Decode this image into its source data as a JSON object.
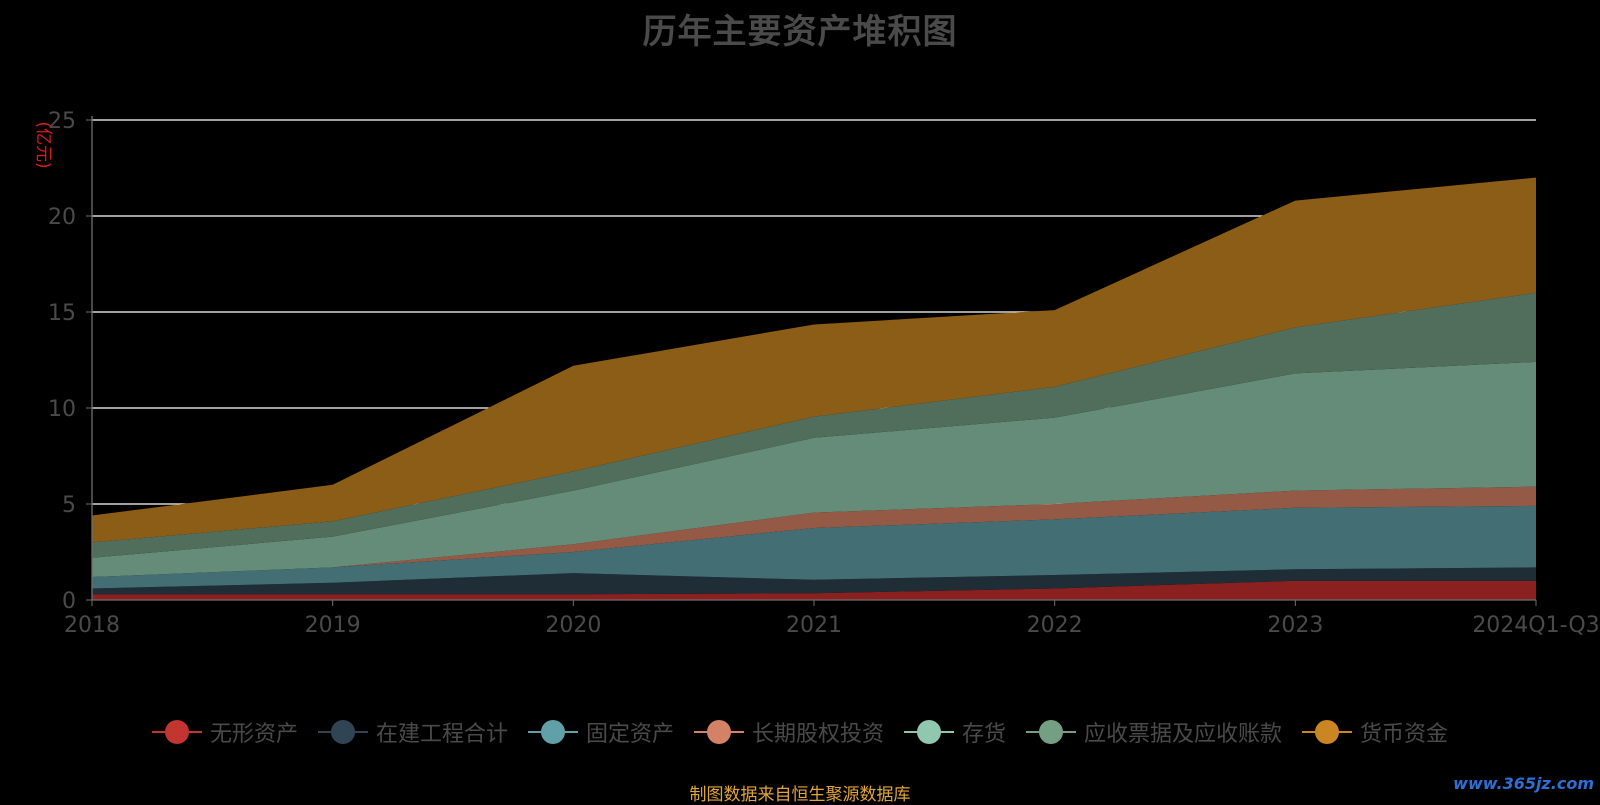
{
  "chart_data": {
    "type": "area",
    "stacked": true,
    "title": "历年主要资产堆积图",
    "ylabel": "(亿元)",
    "xlabel": "",
    "categories": [
      "2018",
      "2019",
      "2020",
      "2021",
      "2022",
      "2023",
      "2024Q1-Q3"
    ],
    "ylim": [
      0,
      25
    ],
    "yticks": [
      0,
      5,
      10,
      15,
      20,
      25
    ],
    "grid": true,
    "legend_position": "bottom",
    "series": [
      {
        "name": "无形资产",
        "color": "#c23531",
        "fill": "#8b2020",
        "values": [
          0.3,
          0.3,
          0.3,
          0.35,
          0.6,
          1.0,
          1.0
        ]
      },
      {
        "name": "在建工程合计",
        "color": "#2f4554",
        "fill": "#1f2d36",
        "values": [
          0.3,
          0.6,
          1.1,
          0.7,
          0.7,
          0.6,
          0.7
        ]
      },
      {
        "name": "固定资产",
        "color": "#61a0a8",
        "fill": "#436e74",
        "values": [
          0.6,
          0.8,
          1.1,
          2.7,
          2.9,
          3.2,
          3.2
        ]
      },
      {
        "name": "长期股权投资",
        "color": "#d48265",
        "fill": "#945a46",
        "values": [
          0.0,
          0.0,
          0.4,
          0.8,
          0.8,
          0.9,
          1.0
        ]
      },
      {
        "name": "存货",
        "color": "#91c7ae",
        "fill": "#658b79",
        "values": [
          1.0,
          1.6,
          2.8,
          3.9,
          4.5,
          6.1,
          6.5
        ]
      },
      {
        "name": "应收票据及应收账款",
        "color": "#749f83",
        "fill": "#506e5b",
        "values": [
          0.8,
          0.8,
          1.0,
          1.1,
          1.6,
          2.4,
          3.6
        ]
      },
      {
        "name": "货币资金",
        "color": "#ca8622",
        "fill": "#8c5d17",
        "values": [
          1.4,
          1.9,
          5.5,
          4.8,
          4.0,
          6.6,
          6.0
        ]
      }
    ]
  },
  "source_note": "制图数据来自恒生聚源数据库",
  "watermark": "www.365jz.com",
  "colors": {
    "background": "#000000",
    "grid": "#ffffff",
    "axis": "#6e6e6e",
    "tick_label": "#4a4a4a",
    "ylabel": "#e01b1b",
    "title": "#4a4a4a"
  }
}
